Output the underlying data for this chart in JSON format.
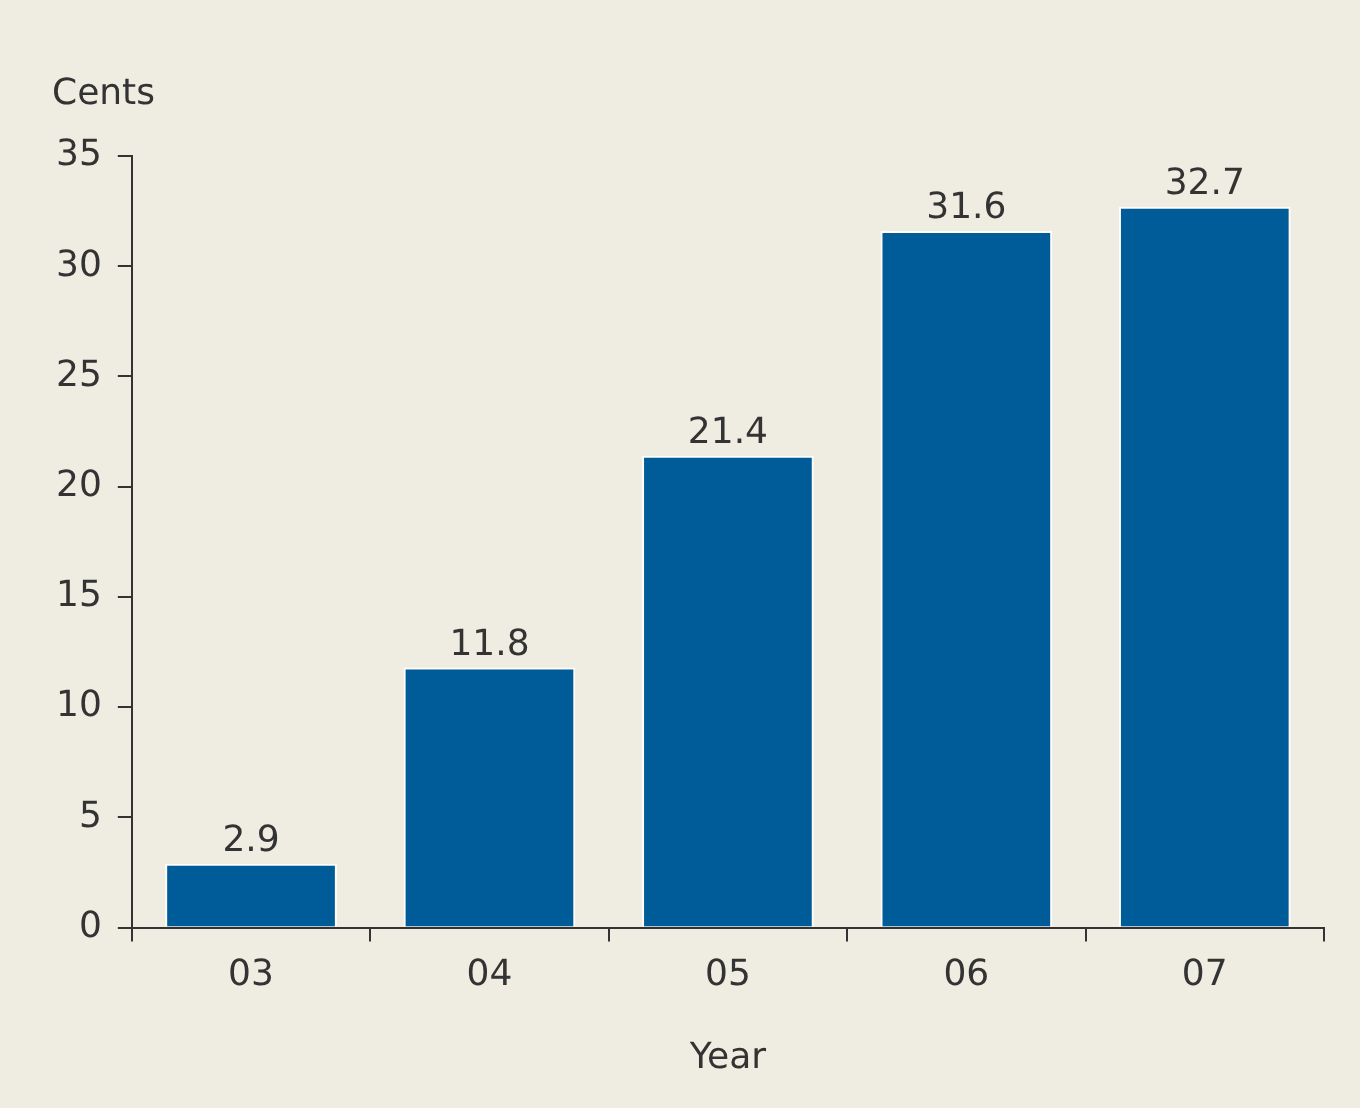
{
  "chart_data": {
    "type": "bar",
    "ylabel": "Cents",
    "xlabel": "Year",
    "categories": [
      "03",
      "04",
      "05",
      "06",
      "07"
    ],
    "values": [
      2.9,
      11.8,
      21.4,
      31.6,
      32.7
    ],
    "color": "#005c99",
    "ylim": [
      0,
      35
    ],
    "yticks": [
      0,
      5,
      10,
      15,
      20,
      25,
      30,
      35
    ],
    "grid": false,
    "legend": false,
    "data_labels": true
  }
}
